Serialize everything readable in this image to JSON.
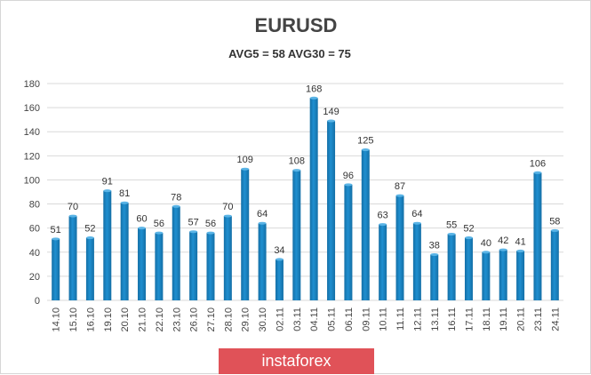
{
  "chart_data": {
    "type": "bar",
    "title": "EURUSD",
    "subtitle": "AVG5 = 58 AVG30 = 75",
    "categories": [
      "14.10",
      "15.10",
      "16.10",
      "19.10",
      "20.10",
      "21.10",
      "22.10",
      "23.10",
      "26.10",
      "27.10",
      "28.10",
      "29.10",
      "30.10",
      "02.11",
      "03.11",
      "04.11",
      "05.11",
      "06.11",
      "09.11",
      "10.11",
      "11.11",
      "12.11",
      "13.11",
      "16.11",
      "17.11",
      "18.11",
      "19.11",
      "20.11",
      "23.11",
      "24.11"
    ],
    "values": [
      51,
      70,
      52,
      91,
      81,
      60,
      56,
      78,
      57,
      56,
      70,
      109,
      64,
      34,
      108,
      168,
      149,
      96,
      125,
      63,
      87,
      64,
      38,
      55,
      52,
      40,
      42,
      41,
      106,
      58
    ],
    "ylim": [
      0,
      180
    ],
    "yticks": [
      0,
      20,
      40,
      60,
      80,
      100,
      120,
      140,
      160,
      180
    ],
    "grid": true,
    "colors": {
      "bar": "#1f8fd0",
      "bar_dark": "#146fa6",
      "bar_top": "#5ab4e6",
      "grid": "#d9d9d9"
    }
  },
  "watermark": {
    "text": "instaforex",
    "color": "#e05258"
  }
}
